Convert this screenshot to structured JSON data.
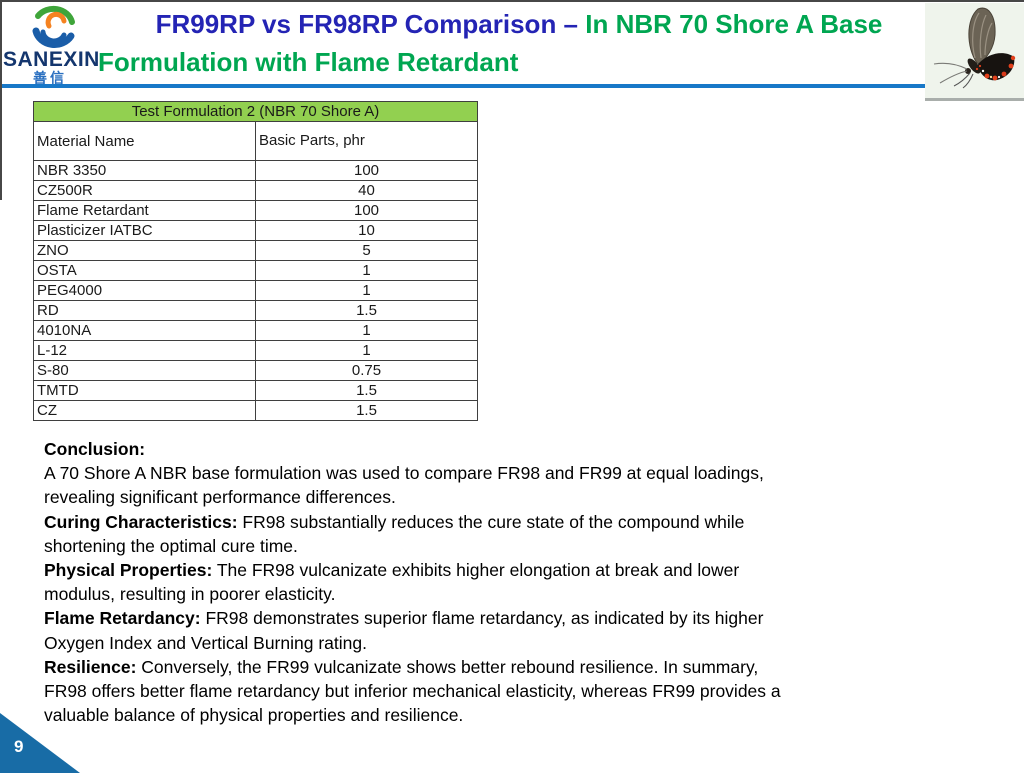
{
  "colors": {
    "title-blue": "#2424b4",
    "title-green": "#00a651",
    "line-blue": "#1878c8",
    "table-green": "#92d050",
    "triangle-blue": "#186ca6",
    "logo-navy": "#14366e"
  },
  "logo": {
    "wordmark": "SANEXIN",
    "chinese": "善信"
  },
  "title": {
    "blue": "FR99RP vs FR98RP Comparison – ",
    "green_line1": "In NBR 70 Shore A Base",
    "green_line2": "Formulation with Flame Retardant"
  },
  "table": {
    "title": "Test Formulation 2 (NBR 70 Shore A)",
    "columns": [
      "Material Name",
      "Basic Parts, phr"
    ],
    "rows": [
      [
        "NBR 3350",
        "100"
      ],
      [
        "CZ500R",
        "40"
      ],
      [
        "Flame Retardant",
        "100"
      ],
      [
        "Plasticizer IATBC",
        "10"
      ],
      [
        "ZNO",
        "5"
      ],
      [
        "OSTA",
        "1"
      ],
      [
        "PEG4000",
        "1"
      ],
      [
        "RD",
        "1.5"
      ],
      [
        "4010NA",
        "1"
      ],
      [
        "L-12",
        "1"
      ],
      [
        "S-80",
        "0.75"
      ],
      [
        "TMTD",
        "1.5"
      ],
      [
        "CZ",
        "1.5"
      ]
    ]
  },
  "conclusion": {
    "paragraphs": [
      {
        "label": "Conclusion:",
        "text": ""
      },
      {
        "label": "",
        "text": "A 70 Shore A NBR base formulation was used to compare FR98 and FR99 at equal loadings, revealing significant performance differences."
      },
      {
        "label": "Curing Characteristics:",
        "text": " FR98 substantially reduces the cure state of the compound while shortening the optimal cure time."
      },
      {
        "label": "Physical Properties:",
        "text": " The FR98 vulcanizate exhibits higher elongation at break and lower modulus, resulting in poorer elasticity."
      },
      {
        "label": "Flame Retardancy:",
        "text": " FR98 demonstrates superior flame retardancy, as indicated by its higher Oxygen Index and Vertical Burning rating."
      },
      {
        "label": "Resilience:",
        "text": " Conversely, the FR99 vulcanizate shows better rebound resilience. In summary, FR98 offers better flame retardancy but inferior mechanical elasticity, whereas FR99 provides a valuable balance of physical properties and resilience."
      }
    ]
  },
  "footer": {
    "page_number": "9"
  }
}
